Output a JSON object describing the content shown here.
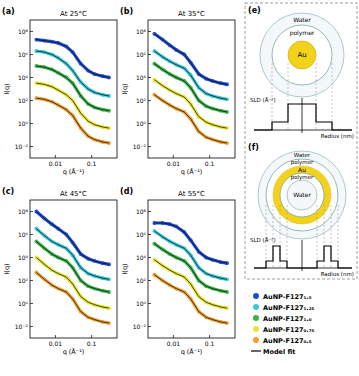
{
  "chart_data": [
    {
      "type": "line",
      "panel_label": "(a)",
      "title": "At 25°C",
      "x_label": "q (Å⁻¹)",
      "y_label": "I(q)",
      "log": true,
      "marker": "circle",
      "x": [
        0.003,
        0.005,
        0.008,
        0.012,
        0.02,
        0.03,
        0.05,
        0.08,
        0.12,
        0.2,
        0.3
      ],
      "xlim": [
        0.002,
        0.5
      ],
      "xticks": [
        0.01,
        0.1
      ],
      "ylim": [
        0.001,
        1000000000.0
      ],
      "yticks": [
        {
          "value": 0.01,
          "label": "10⁻²"
        },
        {
          "value": 1,
          "label": "10⁰"
        },
        {
          "value": 100,
          "label": "10²"
        },
        {
          "value": 10000,
          "label": "10⁴"
        },
        {
          "value": 1000000,
          "label": "10⁶"
        },
        {
          "value": 100000000,
          "label": "10⁸"
        }
      ],
      "series": [
        {
          "name": "AuNP-F127₁.₅",
          "color": "#1f4fd0",
          "values": [
            20000000.0,
            16000000.0,
            13000000.0,
            10000000.0,
            5000000.0,
            1600000.0,
            160000.0,
            40000.0,
            20000.0,
            13000.0,
            10000.0
          ]
        },
        {
          "name": "AuNP-F127₁.₂₅",
          "color": "#3cc8d8",
          "values": [
            2000000.0,
            1600000.0,
            1000000.0,
            500000.0,
            160000.0,
            40000.0,
            4000.0,
            1000.0,
            500,
            316,
            250
          ]
        },
        {
          "name": "AuNP-F127₁.₀",
          "color": "#3cb44b",
          "values": [
            100000.0,
            79000.0,
            50000.0,
            25000.0,
            10000.0,
            3200.0,
            250,
            50,
            25,
            16,
            13
          ]
        },
        {
          "name": "AuNP-F127₀.₇₅",
          "color": "#e6e632",
          "values": [
            3200.0,
            2500.0,
            1600.0,
            790,
            316,
            100,
            7.9,
            1.6,
            0.79,
            0.5,
            0.4
          ]
        },
        {
          "name": "AuNP-F127₀.₅",
          "color": "#f0a030",
          "values": [
            160,
            126,
            79,
            40,
            16,
            5,
            0.4,
            0.079,
            0.04,
            0.025,
            0.02
          ]
        }
      ]
    },
    {
      "type": "line",
      "panel_label": "(b)",
      "title": "At 35°C",
      "x_label": "q (Å⁻¹)",
      "y_label": "I(q)",
      "log": true,
      "marker": "circle",
      "x": [
        0.003,
        0.005,
        0.008,
        0.012,
        0.02,
        0.03,
        0.05,
        0.08,
        0.12,
        0.2,
        0.3
      ],
      "xlim": [
        0.002,
        0.5
      ],
      "xticks": [
        0.01,
        0.1
      ],
      "ylim": [
        0.001,
        1000000000.0
      ],
      "yticks": [
        {
          "value": 0.01,
          "label": "10⁻²"
        },
        {
          "value": 1,
          "label": "10⁰"
        },
        {
          "value": 100,
          "label": "10²"
        },
        {
          "value": 10000,
          "label": "10⁴"
        },
        {
          "value": 1000000,
          "label": "10⁶"
        },
        {
          "value": 100000000,
          "label": "10⁸"
        }
      ],
      "series": [
        {
          "color": "#1f4fd0",
          "values": [
            63000000.0,
            20000000.0,
            6300000.0,
            2500000.0,
            1000000.0,
            200000.0,
            20000.0,
            7900.0,
            5000.0,
            3200.0,
            2500.0
          ]
        },
        {
          "color": "#3cc8d8",
          "values": [
            2000000.0,
            630000.0,
            250000.0,
            130000.0,
            63000.0,
            16000.0,
            1300.0,
            400,
            250,
            160,
            126
          ]
        },
        {
          "color": "#3cb44b",
          "values": [
            160000.0,
            50000.0,
            20000.0,
            10000.0,
            5000.0,
            1300.0,
            100,
            32,
            20,
            13,
            10
          ]
        },
        {
          "color": "#e6e632",
          "values": [
            6300.0,
            2000.0,
            790,
            400,
            200,
            50,
            4,
            1.3,
            0.79,
            0.5,
            0.4
          ]
        },
        {
          "color": "#f0a030",
          "values": [
            316,
            100,
            40,
            20,
            10,
            2.5,
            0.2,
            0.063,
            0.04,
            0.025,
            0.02
          ]
        }
      ]
    },
    {
      "type": "line",
      "panel_label": "(c)",
      "title": "At 45°C",
      "x_label": "q (Å⁻¹)",
      "y_label": "I(q)",
      "log": true,
      "marker": "circle",
      "x": [
        0.003,
        0.005,
        0.008,
        0.012,
        0.02,
        0.03,
        0.05,
        0.08,
        0.12,
        0.2,
        0.3
      ],
      "xlim": [
        0.002,
        0.5
      ],
      "xticks": [
        0.01,
        0.1
      ],
      "ylim": [
        0.001,
        1000000000.0
      ],
      "yticks": [
        {
          "value": 0.01,
          "label": "10⁻²"
        },
        {
          "value": 1,
          "label": "10⁰"
        },
        {
          "value": 100,
          "label": "10²"
        },
        {
          "value": 10000,
          "label": "10⁴"
        },
        {
          "value": 1000000,
          "label": "10⁶"
        },
        {
          "value": 100000000,
          "label": "10⁸"
        }
      ],
      "series": [
        {
          "color": "#1f4fd0",
          "values": [
            100000000.0,
            25000000.0,
            7900000.0,
            3200000.0,
            1000000.0,
            200000.0,
            20000.0,
            7900.0,
            5000.0,
            3200.0,
            2500.0
          ]
        },
        {
          "color": "#3cc8d8",
          "values": [
            3200000.0,
            790000.0,
            250000.0,
            130000.0,
            63000.0,
            16000.0,
            1300.0,
            400,
            250,
            160,
            126
          ]
        },
        {
          "color": "#3cb44b",
          "values": [
            250000.0,
            63000.0,
            20000.0,
            10000.0,
            5000.0,
            1300.0,
            100,
            32,
            20,
            13,
            10
          ]
        },
        {
          "color": "#e6e632",
          "values": [
            10000.0,
            2500.0,
            790,
            400,
            200,
            50,
            4,
            1.3,
            0.79,
            0.5,
            0.4
          ]
        },
        {
          "color": "#f0a030",
          "values": [
            500,
            126,
            40,
            20,
            10,
            2.5,
            0.2,
            0.063,
            0.04,
            0.025,
            0.02
          ]
        }
      ]
    },
    {
      "type": "line",
      "panel_label": "(d)",
      "title": "At 55°C",
      "x_label": "q (Å⁻¹)",
      "y_label": "I(q)",
      "log": true,
      "marker": "circle",
      "x": [
        0.003,
        0.005,
        0.008,
        0.012,
        0.02,
        0.03,
        0.05,
        0.08,
        0.12,
        0.2,
        0.3
      ],
      "xlim": [
        0.002,
        0.5
      ],
      "xticks": [
        0.01,
        0.1
      ],
      "ylim": [
        0.001,
        1000000000.0
      ],
      "yticks": [
        {
          "value": 0.01,
          "label": "10⁻²"
        },
        {
          "value": 1,
          "label": "10⁰"
        },
        {
          "value": 100,
          "label": "10²"
        },
        {
          "value": 10000,
          "label": "10⁴"
        },
        {
          "value": 1000000,
          "label": "10⁶"
        },
        {
          "value": 100000000,
          "label": "10⁸"
        }
      ],
      "series": [
        {
          "color": "#1f4fd0",
          "values": [
            10000000.0,
            10000000.0,
            7900000.0,
            5000000.0,
            1600000.0,
            320000.0,
            32000.0,
            10000.0,
            6300.0,
            4000.0,
            3200.0
          ]
        },
        {
          "color": "#3cc8d8",
          "values": [
            2000000.0,
            630000.0,
            250000.0,
            130000.0,
            63000.0,
            16000.0,
            1300.0,
            400,
            250,
            160,
            126
          ]
        },
        {
          "color": "#3cb44b",
          "values": [
            160000.0,
            50000.0,
            20000.0,
            10000.0,
            5000.0,
            1300.0,
            100,
            32,
            20,
            13,
            10
          ]
        },
        {
          "color": "#e6e632",
          "values": [
            6300.0,
            2000.0,
            790,
            400,
            200,
            50,
            4,
            1.3,
            0.79,
            0.5,
            0.4
          ]
        },
        {
          "color": "#f0a030",
          "values": [
            316,
            100,
            40,
            20,
            10,
            2.5,
            0.2,
            0.063,
            0.04,
            0.025,
            0.02
          ]
        }
      ]
    }
  ],
  "fit_label": "Model fit",
  "diagrams": [
    {
      "panel_label": "(e)",
      "labels": [
        "Water",
        "polymer",
        "Au"
      ],
      "y_label": "SLD (Å⁻²)",
      "x_label": "Radius (nm)"
    },
    {
      "panel_label": "(f)",
      "labels": [
        "Water",
        "polymer",
        "Au",
        "polymer",
        "Water"
      ],
      "y_label": "SLD (Å⁻²)",
      "x_label": "Radius (nm)"
    }
  ]
}
